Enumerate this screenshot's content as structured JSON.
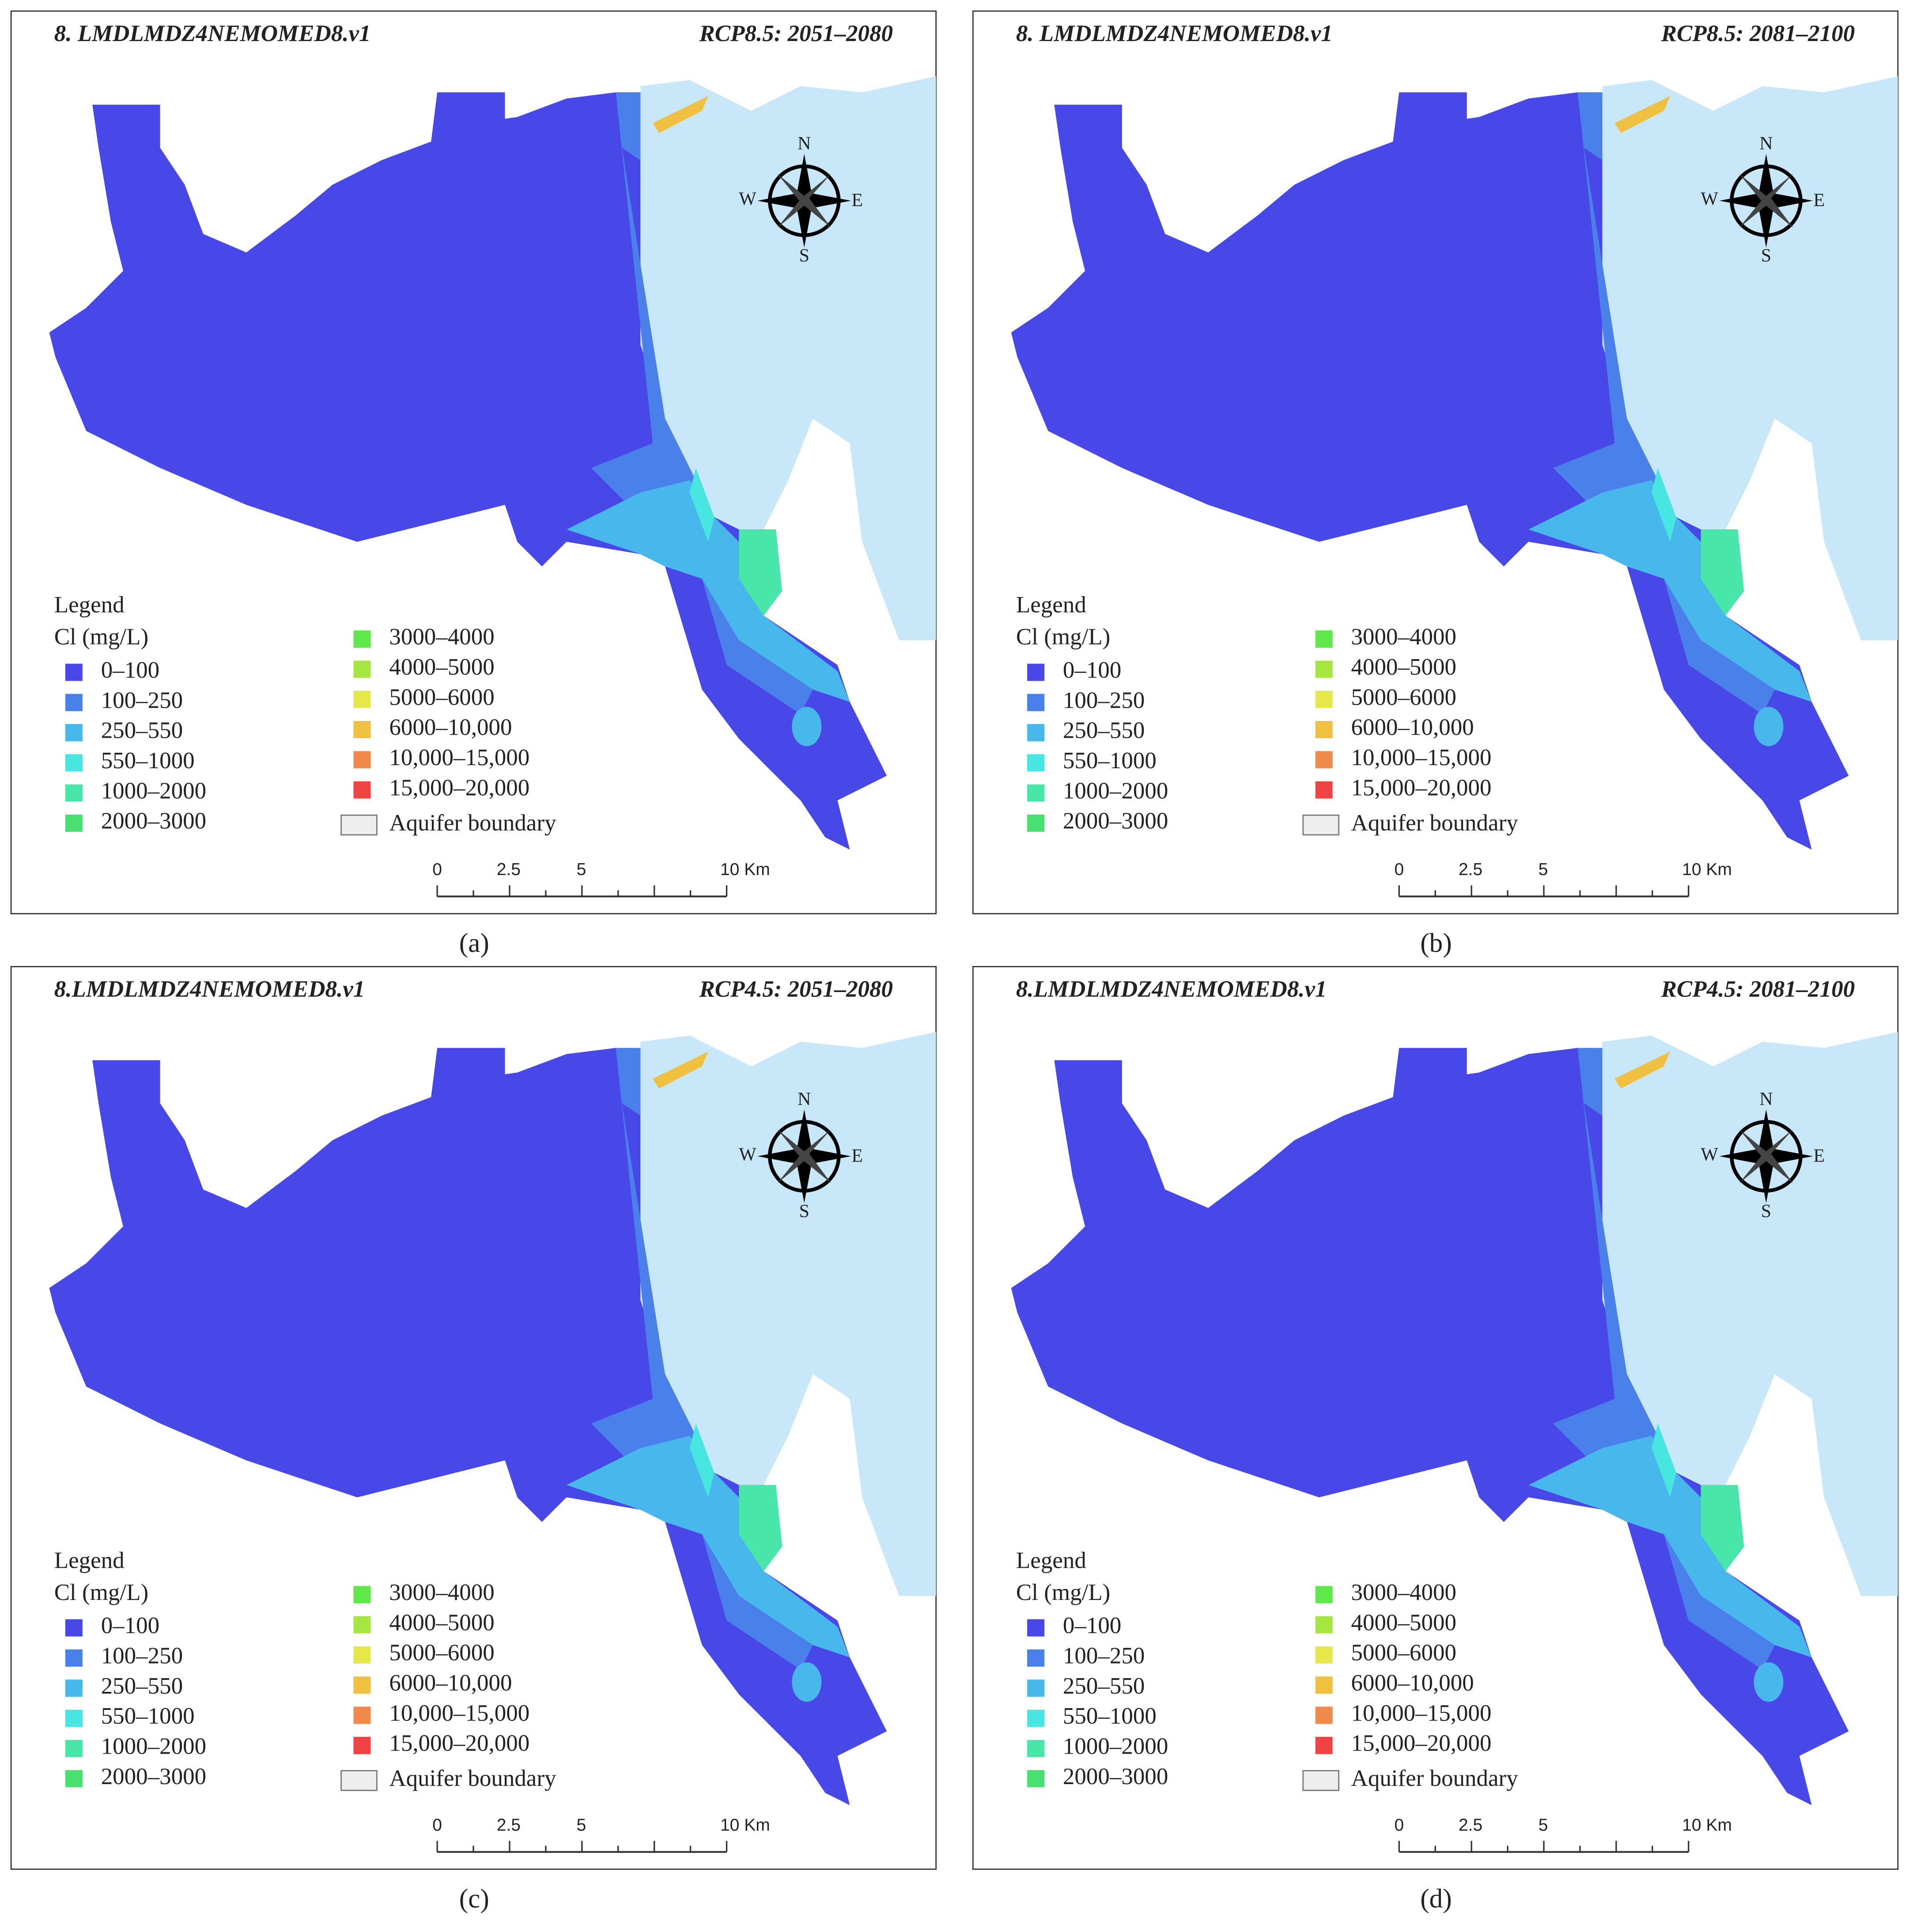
{
  "panels": [
    {
      "title": "8. LMDLMDZ4NEMOMED8.v1",
      "scenario": "RCP8.5: 2051–2080",
      "caption": "(a)"
    },
    {
      "title": "8. LMDLMDZ4NEMOMED8.v1",
      "scenario": "RCP8.5: 2081–2100",
      "caption": "(b)"
    },
    {
      "title": "8.LMDLMDZ4NEMOMED8.v1",
      "scenario": "RCP4.5: 2051–2080",
      "caption": "(c)"
    },
    {
      "title": "8.LMDLMDZ4NEMOMED8.v1",
      "scenario": "RCP4.5: 2081–2100",
      "caption": "(d)"
    }
  ],
  "legend": {
    "heading": "Legend",
    "unit": "Cl (mg/L)",
    "classes": [
      {
        "label": "0–100",
        "color": "#4848e8"
      },
      {
        "label": "100–250",
        "color": "#4a80ea"
      },
      {
        "label": "250–550",
        "color": "#48b8ec"
      },
      {
        "label": "550–1000",
        "color": "#48e6e0"
      },
      {
        "label": "1000–2000",
        "color": "#48e6a8"
      },
      {
        "label": "2000–3000",
        "color": "#48e070"
      },
      {
        "label": "3000–4000",
        "color": "#5ee84a"
      },
      {
        "label": "4000–5000",
        "color": "#a6e640"
      },
      {
        "label": "5000–6000",
        "color": "#e6e84a"
      },
      {
        "label": "6000–10,000",
        "color": "#f0c040"
      },
      {
        "label": "10,000–15,000",
        "color": "#f08a4a"
      },
      {
        "label": "15,000–20,000",
        "color": "#ee4444"
      }
    ],
    "boundary": "Aquifer boundary"
  },
  "compass": {
    "north": "N",
    "south": "S",
    "west": "W",
    "east": "E"
  },
  "scale_bar": {
    "labels": [
      "0",
      "2.5",
      "5",
      "10 Km"
    ]
  }
}
